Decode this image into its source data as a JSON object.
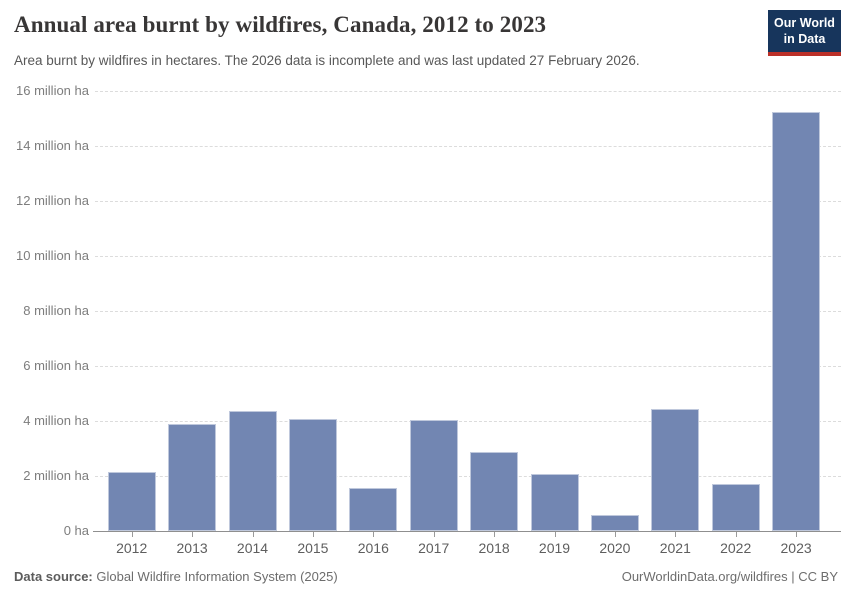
{
  "header": {
    "title": "Annual area burnt by wildfires, Canada, 2012 to 2023",
    "subtitle": "Area burnt by wildfires in hectares. The 2026 data is incomplete and was last updated 27 February 2026.",
    "logo": {
      "line1": "Our World",
      "line2": "in Data",
      "bg_color": "#17355c",
      "accent_color": "#bb3028"
    }
  },
  "chart_data": {
    "type": "bar",
    "title": "Annual area burnt by wildfires, Canada, 2012 to 2023",
    "categories": [
      "2012",
      "2013",
      "2014",
      "2015",
      "2016",
      "2017",
      "2018",
      "2019",
      "2020",
      "2021",
      "2022",
      "2023"
    ],
    "values": [
      2.15,
      3.9,
      4.37,
      4.08,
      1.55,
      4.04,
      2.87,
      2.08,
      0.59,
      4.45,
      1.7,
      15.25
    ],
    "unit": "million ha",
    "xlabel": "",
    "ylabel": "",
    "ylim": [
      0,
      16
    ],
    "yticks": [
      0,
      2,
      4,
      6,
      8,
      10,
      12,
      14,
      16
    ],
    "ytick_labels": [
      "0 ha",
      "2 million ha",
      "4 million ha",
      "6 million ha",
      "8 million ha",
      "10 million ha",
      "12 million ha",
      "14 million ha",
      "16 million ha"
    ],
    "grid": true,
    "legend": "none",
    "bar_color": "#7286b2"
  },
  "footer": {
    "datasource_label": "Data source:",
    "datasource_value": " Global Wildfire Information System (2025)",
    "link": "OurWorldinData.org/wildfires",
    "separator": " | ",
    "license": "CC BY"
  }
}
